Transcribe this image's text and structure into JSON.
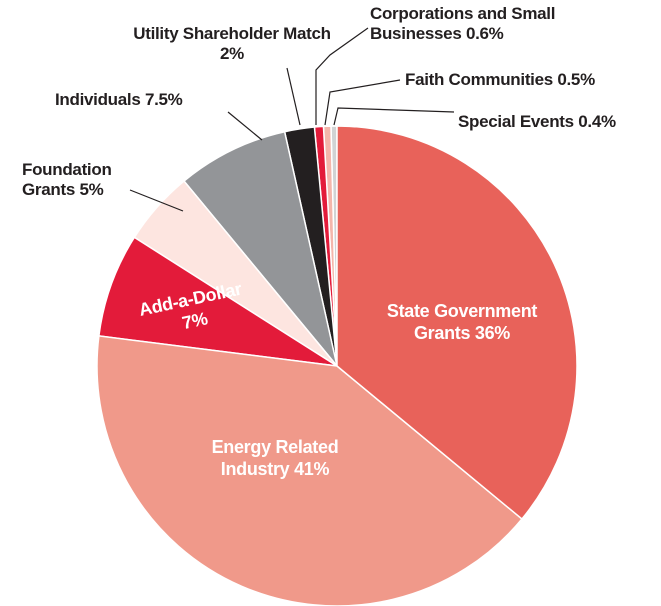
{
  "chart_data": {
    "type": "pie",
    "categories": [
      "State Government Grants",
      "Energy Related Industry",
      "Add-a-Dollar",
      "Foundation Grants",
      "Individuals",
      "Utility Shareholder Match",
      "Corporations and Small Businesses",
      "Faith Communities",
      "Special Events"
    ],
    "values": [
      36,
      41,
      7,
      5,
      7.5,
      2,
      0.6,
      0.5,
      0.4
    ],
    "value_labels": [
      "36%",
      "41%",
      "7%",
      "5%",
      "7.5%",
      "2%",
      "0.6%",
      "0.5%",
      "0.4%"
    ],
    "colors": [
      "#e8625a",
      "#f0998a",
      "#e31b3a",
      "#fde5e0",
      "#939598",
      "#231f20",
      "#e31b3a",
      "#f4b6ab",
      "#d1d3d4"
    ]
  }
}
